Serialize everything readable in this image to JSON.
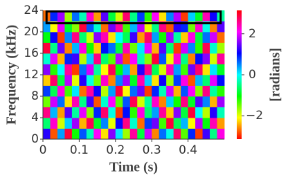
{
  "chart_data": {
    "type": "heatmap",
    "xlabel": "Time (s)",
    "ylabel": "Frequency (kHz)",
    "xlim": [
      0,
      0.5
    ],
    "ylim": [
      0,
      24
    ],
    "xticks": [
      0,
      0.1,
      0.2,
      0.3,
      0.4
    ],
    "yticks": [
      0,
      4,
      8,
      12,
      16,
      20,
      24
    ],
    "colormap": "hsv",
    "colorbar": {
      "label": "[radians]",
      "clim": [
        -3.14,
        3.14
      ],
      "ticks": [
        {
          "value": -2,
          "label": "−2"
        },
        0,
        2
      ]
    },
    "highlight": {
      "x": [
        0.01,
        0.49
      ],
      "y": [
        21.6,
        23.8
      ],
      "color": "#000000"
    },
    "z": [
      [
        1.2,
        -2.8,
        0.4,
        2.9,
        -1.1,
        0.7,
        -0.3,
        2.1,
        -2.2,
        1.6,
        0.1,
        -1.7,
        2.5,
        -0.8,
        1.9,
        -2.6,
        0.6,
        -0.1,
        2.7,
        -1.4,
        0.9,
        -2.9,
        1.3,
        -0.5,
        2.2
      ],
      [
        -0.6,
        2.3,
        -1.9,
        0.2,
        1.7,
        -2.4,
        2.8,
        -0.9,
        0.5,
        -2.0,
        1.1,
        2.6,
        -0.2,
        -2.7,
        0.8,
        1.5,
        -1.3,
        2.9,
        -0.7,
        0.3,
        -2.1,
        1.8,
        -1.0,
        2.4,
        -2.5
      ],
      [
        2.6,
        0.3,
        -2.5,
        1.4,
        -0.4,
        2.0,
        -1.6,
        0.9,
        2.7,
        -0.1,
        -2.9,
        1.0,
        -1.2,
        2.2,
        -0.6,
        0.4,
        2.5,
        -2.3,
        1.6,
        -0.8,
        2.9,
        0.0,
        -1.8,
        1.2,
        -0.3
      ],
      [
        -1.5,
        1.9,
        0.6,
        -2.2,
        2.4,
        -0.5,
        1.3,
        -2.8,
        -0.2,
        2.1,
        -1.4,
        0.7,
        2.8,
        -1.9,
        -0.4,
        2.3,
        -2.6,
        0.2,
        -1.1,
        2.6,
        -0.9,
        1.4,
        0.5,
        -2.4,
        1.7
      ],
      [
        0.8,
        -0.7,
        2.2,
        -1.3,
        0.1,
        -2.7,
        2.5,
        1.1,
        -1.8,
        0.4,
        2.9,
        -2.1,
        0.6,
        1.5,
        -2.9,
        0.9,
        -0.3,
        1.9,
        -2.4,
        0.7,
        2.1,
        -1.6,
        2.6,
        -0.4,
        -1.2
      ],
      [
        -2.3,
        2.7,
        -0.8,
        1.8,
        -2.0,
        1.2,
        -0.1,
        -1.5,
        2.3,
        -2.6,
        0.5,
        1.7,
        -0.9,
        2.4,
        0.2,
        -2.2,
        1.1,
        -1.7,
        0.8,
        2.2,
        -2.8,
        0.3,
        -0.6,
        2.0,
        1.0
      ],
      [
        1.6,
        -1.2,
        0.0,
        2.5,
        -2.9,
        0.6,
        1.9,
        -0.4,
        -2.1,
        2.8,
        -1.0,
        0.3,
        -2.5,
        1.2,
        2.6,
        -0.7,
        -1.9,
        2.4,
        0.4,
        -1.3,
        1.5,
        2.7,
        -2.2,
        0.1,
        -0.9
      ],
      [
        -0.2,
        2.0,
        -2.4,
        0.9,
        1.3,
        -1.8,
        0.2,
        2.6,
        -0.6,
        -1.4,
        1.8,
        -2.8,
        2.1,
        -0.3,
        -1.6,
        2.9,
        0.7,
        -2.0,
        2.3,
        -0.5,
        -2.6,
        1.0,
        1.6,
        -1.9,
        2.5
      ],
      [
        2.9,
        -0.5,
        1.5,
        -2.6,
        0.3,
        2.2,
        -1.1,
        -2.3,
        1.0,
        0.6,
        -0.8,
        2.4,
        -1.5,
        0.1,
        2.0,
        -2.4,
        1.4,
        -0.6,
        -2.9,
        1.9,
        0.5,
        -1.2,
        2.8,
        -0.2,
        -1.7
      ],
      [
        -1.0,
        1.1,
        -2.9,
        0.5,
        2.6,
        -0.6,
        -1.9,
        1.6,
        2.4,
        -2.2,
        0.0,
        -0.7,
        1.3,
        -2.5,
        2.7,
        0.4,
        -1.1,
        1.7,
        -0.4,
        -2.3,
        2.2,
        -0.8,
        0.6,
        1.9,
        -2.7
      ],
      [
        0.4,
        -2.1,
        2.0,
        -0.9,
        -1.6,
        2.9,
        0.7,
        -0.2,
        -2.7,
        1.5,
        2.5,
        -1.3,
        0.3,
        1.8,
        -2.0,
        -0.5,
        2.6,
        -2.8,
        1.2,
        0.9,
        -1.5,
        2.3,
        -0.1,
        -2.6,
        1.4
      ],
      [
        -2.7,
        0.9,
        1.7,
        -1.7,
        0.6,
        -0.3,
        2.3,
        -2.5,
        1.4,
        -0.8,
        -1.9,
        2.7,
        -0.5,
        0.8,
        -1.2,
        2.1,
        -2.2,
        0.5,
        1.8,
        -2.9,
        0.2,
        -0.9,
        2.4,
        1.1,
        -0.4
      ]
    ]
  }
}
